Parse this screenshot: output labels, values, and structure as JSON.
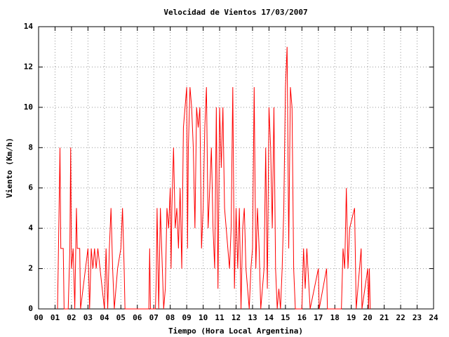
{
  "chart_data": {
    "type": "line",
    "title": "Velocidad de Vientos 17/03/2007",
    "xlabel": "Tiempo (Hora Local Argentina)",
    "ylabel": "Viento (Km/h)",
    "xlim": [
      0,
      24
    ],
    "ylim": [
      0,
      14
    ],
    "xticks": [
      {
        "value": 0,
        "label": "00"
      },
      {
        "value": 1,
        "label": "01"
      },
      {
        "value": 2,
        "label": "02"
      },
      {
        "value": 3,
        "label": "03"
      },
      {
        "value": 4,
        "label": "04"
      },
      {
        "value": 5,
        "label": "05"
      },
      {
        "value": 6,
        "label": "06"
      },
      {
        "value": 7,
        "label": "07"
      },
      {
        "value": 8,
        "label": "08"
      },
      {
        "value": 9,
        "label": "09"
      },
      {
        "value": 10,
        "label": "10"
      },
      {
        "value": 11,
        "label": "11"
      },
      {
        "value": 12,
        "label": "12"
      },
      {
        "value": 13,
        "label": "13"
      },
      {
        "value": 14,
        "label": "14"
      },
      {
        "value": 15,
        "label": "15"
      },
      {
        "value": 16,
        "label": "16"
      },
      {
        "value": 17,
        "label": "17"
      },
      {
        "value": 18,
        "label": "18"
      },
      {
        "value": 19,
        "label": "19"
      },
      {
        "value": 20,
        "label": "20"
      },
      {
        "value": 21,
        "label": "21"
      },
      {
        "value": 22,
        "label": "22"
      },
      {
        "value": 23,
        "label": "23"
      },
      {
        "value": 24,
        "label": "24"
      }
    ],
    "yticks": [
      0,
      2,
      4,
      6,
      8,
      10,
      12,
      14
    ],
    "grid": true,
    "color": "#ff0000",
    "x": [
      1.15,
      1.2,
      1.3,
      1.35,
      1.5,
      1.55,
      1.8,
      1.9,
      1.95,
      2.0,
      2.1,
      2.2,
      2.3,
      2.35,
      2.5,
      2.55,
      3.0,
      3.1,
      3.2,
      3.3,
      3.4,
      3.5,
      3.6,
      4.0,
      4.1,
      4.2,
      4.3,
      4.4,
      4.5,
      4.6,
      4.8,
      5.0,
      5.1,
      5.2,
      5.25,
      6.7,
      6.75,
      6.8,
      7.1,
      7.15,
      7.2,
      7.3,
      7.4,
      7.5,
      7.6,
      7.7,
      7.8,
      7.9,
      8.0,
      8.05,
      8.1,
      8.2,
      8.3,
      8.4,
      8.5,
      8.6,
      8.7,
      8.8,
      8.9,
      9.0,
      9.05,
      9.1,
      9.2,
      9.3,
      9.4,
      9.5,
      9.6,
      9.7,
      9.8,
      9.9,
      10.0,
      10.1,
      10.2,
      10.3,
      10.4,
      10.5,
      10.6,
      10.7,
      10.8,
      10.9,
      11.0,
      11.1,
      11.2,
      11.3,
      11.4,
      11.5,
      11.6,
      11.7,
      11.8,
      11.9,
      12.0,
      12.1,
      12.2,
      12.3,
      12.4,
      12.5,
      12.6,
      12.8,
      12.9,
      13.0,
      13.1,
      13.2,
      13.3,
      13.4,
      13.5,
      13.7,
      13.8,
      13.9,
      14.0,
      14.1,
      14.2,
      14.3,
      14.4,
      14.5,
      14.6,
      14.7,
      14.8,
      14.9,
      15.0,
      15.1,
      15.2,
      15.3,
      15.4,
      15.5,
      15.6,
      16.0,
      16.1,
      16.2,
      16.3,
      16.4,
      16.5,
      17.0,
      17.05,
      17.5,
      17.55,
      18.4,
      18.5,
      18.6,
      18.7,
      18.8,
      18.9,
      19.2,
      19.3,
      19.6,
      19.65,
      20.0,
      20.05,
      20.1,
      20.15
    ],
    "values": [
      0,
      2.5,
      8,
      3,
      3,
      0,
      0,
      3,
      8,
      2,
      3,
      0,
      5,
      3,
      3,
      0,
      3,
      0,
      3,
      2,
      3,
      2,
      3,
      0,
      3,
      0,
      3,
      5,
      2,
      0,
      2,
      3,
      5,
      2,
      0,
      0,
      3,
      0,
      0,
      1.5,
      5,
      0,
      5,
      2.5,
      0,
      1,
      5,
      4,
      6,
      2,
      5,
      8,
      4,
      5,
      3,
      6,
      2,
      9,
      10,
      11,
      3,
      8,
      11,
      10,
      8,
      4,
      10,
      9,
      10,
      3,
      5,
      9,
      11,
      4,
      6,
      8,
      4,
      2,
      10,
      1,
      10,
      7,
      10,
      5,
      4,
      3,
      2,
      4,
      11,
      1,
      5,
      2,
      5,
      0,
      4,
      5,
      2,
      0,
      2,
      3,
      11,
      2,
      5,
      3,
      0,
      2,
      8,
      1,
      10,
      8,
      4,
      10,
      2,
      0,
      1,
      0,
      2,
      5,
      11,
      13,
      3,
      11,
      10,
      2,
      0,
      0,
      3,
      1,
      3,
      1.5,
      0,
      2,
      0,
      2,
      0,
      0,
      3,
      2,
      6,
      2,
      4,
      5,
      0,
      3,
      0,
      2,
      0,
      2,
      0
    ]
  }
}
